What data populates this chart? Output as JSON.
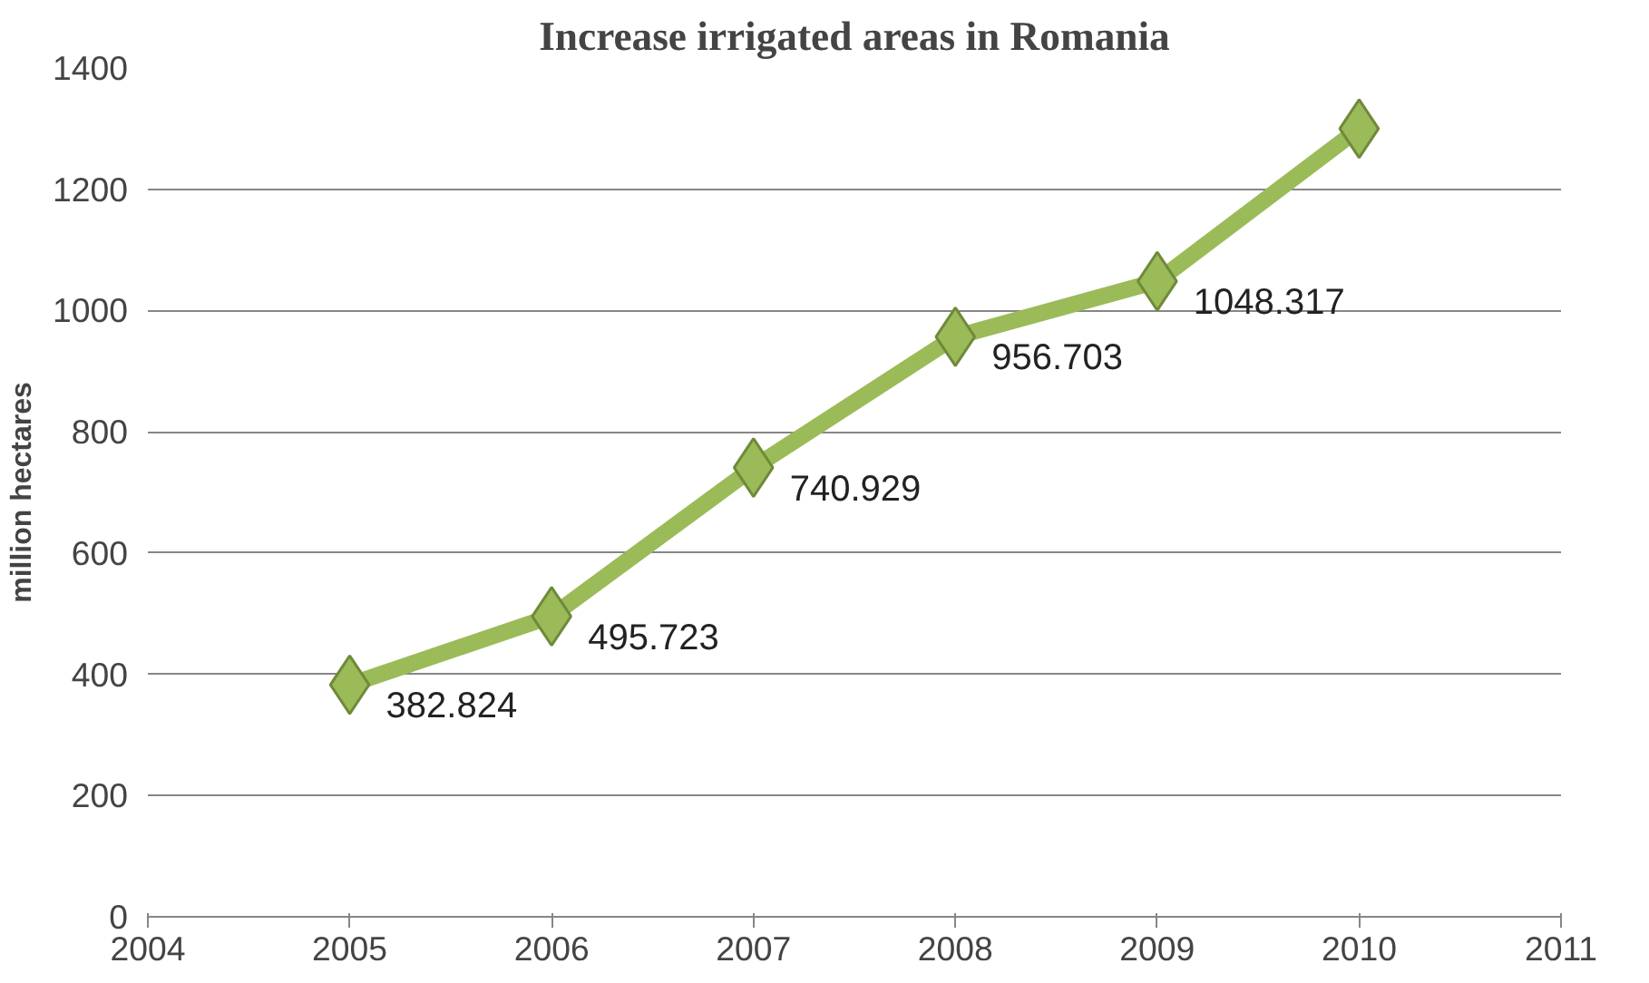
{
  "chart_data": {
    "type": "line",
    "title": "Increase irrigated areas in Romania",
    "ylabel": "million hectares",
    "x": [
      2005,
      2006,
      2007,
      2008,
      2009,
      2010
    ],
    "series": [
      {
        "color": "#9bbb59",
        "values": [
          382.824,
          495.723,
          740.929,
          956.703,
          1048.317,
          1300
        ],
        "value_labels": [
          "382.824",
          "495.723",
          "740.929",
          "956.703",
          "1048.317",
          null
        ]
      }
    ],
    "xlim": [
      2004,
      2011
    ],
    "xticks": [
      2004,
      2005,
      2006,
      2007,
      2008,
      2009,
      2010,
      2011
    ],
    "ylim": [
      0,
      1400
    ],
    "yticks": [
      0,
      200,
      400,
      600,
      800,
      1000,
      1200,
      1400
    ],
    "grid": "y",
    "marker": "diamond",
    "line_style": "solid"
  }
}
